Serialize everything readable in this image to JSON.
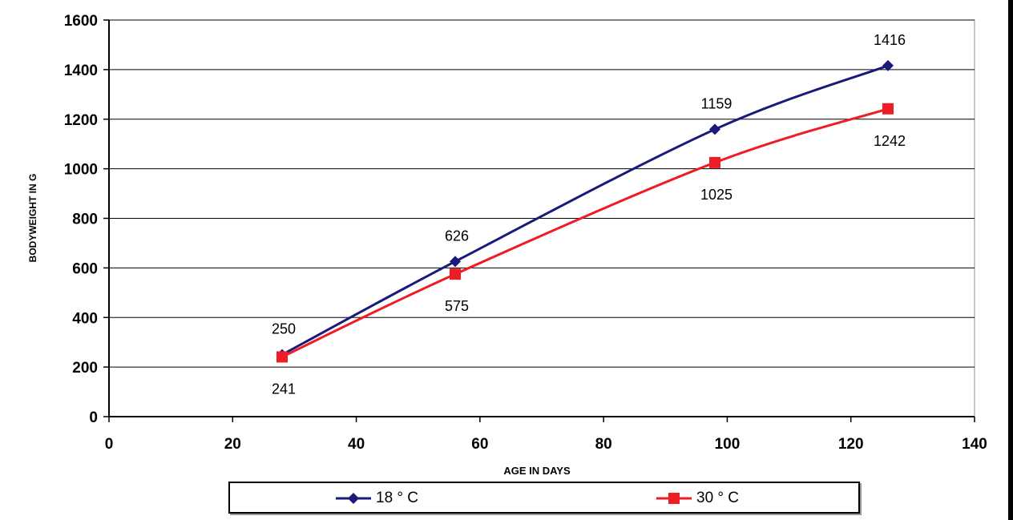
{
  "chart_data": {
    "type": "line",
    "title": "",
    "xlabel": "AGE IN DAYS",
    "ylabel": "BODYWEIGHT IN G",
    "xlim": [
      0,
      140
    ],
    "ylim": [
      0,
      1600
    ],
    "x_ticks": [
      "0",
      "20",
      "40",
      "60",
      "80",
      "100",
      "120",
      "140"
    ],
    "y_ticks": [
      "0",
      "200",
      "400",
      "600",
      "800",
      "1000",
      "1200",
      "1400",
      "1600"
    ],
    "grid": "horizontal",
    "legend_position": "bottom",
    "series": [
      {
        "name": "18 ° C",
        "color": "#1a1a7a",
        "marker": "diamond",
        "x": [
          28,
          56,
          98,
          126
        ],
        "values": [
          250,
          626,
          1159,
          1416
        ],
        "labels": [
          "250",
          "626",
          "1159",
          "1416"
        ]
      },
      {
        "name": "30 ° C",
        "color": "#ee1c25",
        "marker": "square",
        "x": [
          28,
          56,
          98,
          126
        ],
        "values": [
          241,
          575,
          1025,
          1242
        ],
        "labels": [
          "241",
          "575",
          "1025",
          "1242"
        ]
      }
    ]
  }
}
